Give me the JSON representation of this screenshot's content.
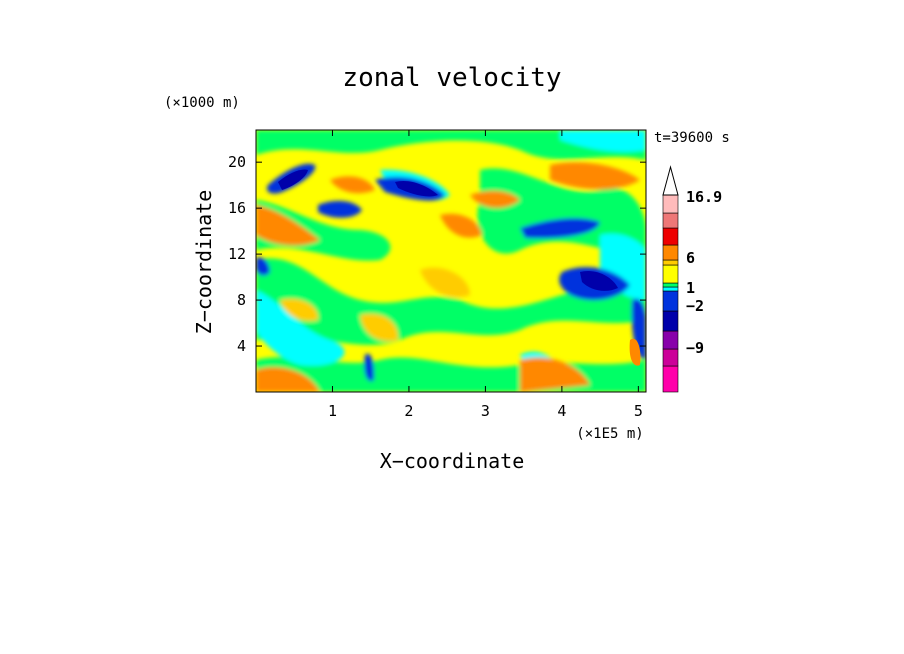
{
  "chart_data": {
    "type": "heatmap",
    "title": "zonal velocity",
    "xlabel": "X−coordinate",
    "ylabel": "Z−coordinate",
    "x_unit": "(×1E5 m)",
    "y_unit": "(×1000 m)",
    "time_label": "t=39600 s",
    "xlim": [
      0,
      5.1
    ],
    "ylim": [
      0,
      22.8
    ],
    "x_ticks": [
      1,
      2,
      3,
      4,
      5
    ],
    "y_ticks": [
      4,
      8,
      12,
      16,
      20
    ],
    "colorbar": {
      "labels": [
        {
          "value": 16.9,
          "text": "16.9"
        },
        {
          "value": 6,
          "text": "6"
        },
        {
          "value": 1,
          "text": "1"
        },
        {
          "value": -2,
          "text": "−2"
        },
        {
          "value": -9,
          "text": "−9"
        }
      ],
      "colors": [
        "#ff00aa",
        "#cc0099",
        "#8800aa",
        "#0000aa",
        "#0033dd",
        "#00ffff",
        "#00ff66",
        "#ffff00",
        "#ffcc00",
        "#ff8800",
        "#ee0000",
        "#ee7777",
        "#ffbbbb",
        "#ffffff"
      ]
    }
  },
  "colors": {
    "blue": "#0033dd",
    "cyan": "#00ffff",
    "green": "#00ff66",
    "yellow": "#ffff00",
    "gold": "#ffcc00",
    "orange": "#ff8800",
    "red": "#ee0000",
    "pink": "#ee7777",
    "lightpink": "#ffbbbb",
    "darkblue": "#0000aa",
    "purple": "#8800aa",
    "magenta": "#ff00aa"
  }
}
